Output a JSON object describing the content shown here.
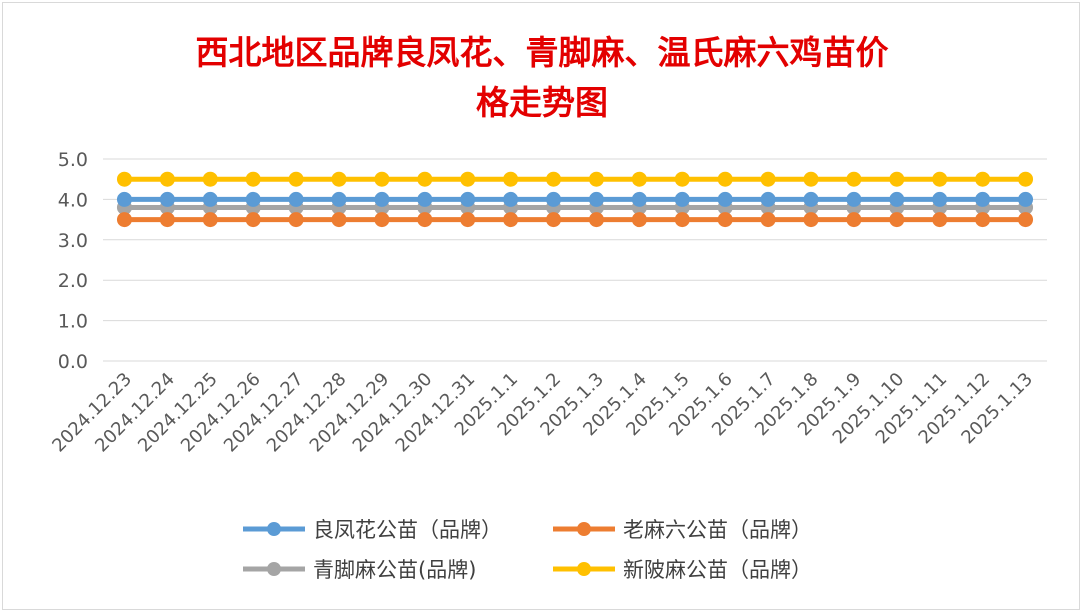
{
  "chart_data": {
    "type": "line",
    "title_line1": "西北地区品牌良凤花、青脚麻、温氏麻六鸡苗价",
    "title_line2": "格走势图",
    "categories": [
      "2024.12.23",
      "2024.12.24",
      "2024.12.25",
      "2024.12.26",
      "2024.12.27",
      "2024.12.28",
      "2024.12.29",
      "2024.12.30",
      "2024.12.31",
      "2025.1.1",
      "2025.1.2",
      "2025.1.3",
      "2025.1.4",
      "2025.1.5",
      "2025.1.6",
      "2025.1.7",
      "2025.1.8",
      "2025.1.9",
      "2025.1.10",
      "2025.1.11",
      "2025.1.12",
      "2025.1.13"
    ],
    "ylim": [
      0,
      5
    ],
    "yticks": [
      "0.0",
      "1.0",
      "2.0",
      "3.0",
      "4.0",
      "5.0"
    ],
    "grid": true,
    "legend_position": "bottom",
    "series": [
      {
        "name": "良凤花公苗（品牌）",
        "color": "#5b9bd5",
        "values": [
          4,
          4,
          4,
          4,
          4,
          4,
          4,
          4,
          4,
          4,
          4,
          4,
          4,
          4,
          4,
          4,
          4,
          4,
          4,
          4,
          4,
          4
        ]
      },
      {
        "name": "老麻六公苗（品牌）",
        "color": "#ed7d31",
        "values": [
          3.5,
          3.5,
          3.5,
          3.5,
          3.5,
          3.5,
          3.5,
          3.5,
          3.5,
          3.5,
          3.5,
          3.5,
          3.5,
          3.5,
          3.5,
          3.5,
          3.5,
          3.5,
          3.5,
          3.5,
          3.5,
          3.5
        ]
      },
      {
        "name": "青脚麻公苗(品牌)",
        "color": "#a5a5a5",
        "values": [
          3.8,
          3.8,
          3.8,
          3.8,
          3.8,
          3.8,
          3.8,
          3.8,
          3.8,
          3.8,
          3.8,
          3.8,
          3.8,
          3.8,
          3.8,
          3.8,
          3.8,
          3.8,
          3.8,
          3.8,
          3.8,
          3.8
        ]
      },
      {
        "name": "新陂麻公苗（品牌）",
        "color": "#ffc000",
        "values": [
          4.5,
          4.5,
          4.5,
          4.5,
          4.5,
          4.5,
          4.5,
          4.5,
          4.5,
          4.5,
          4.5,
          4.5,
          4.5,
          4.5,
          4.5,
          4.5,
          4.5,
          4.5,
          4.5,
          4.5,
          4.5,
          4.5
        ]
      }
    ]
  }
}
